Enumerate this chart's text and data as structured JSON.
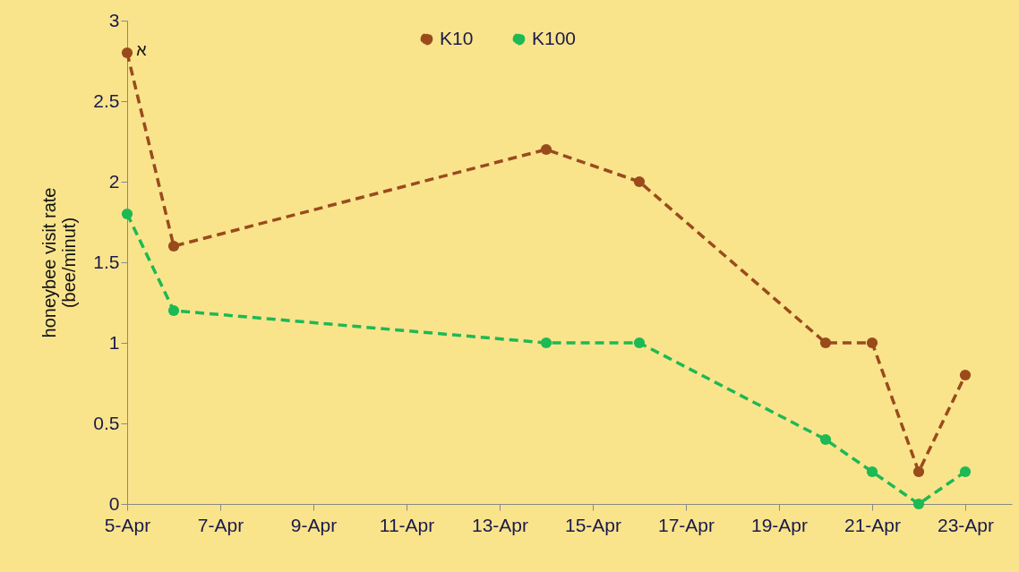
{
  "chart_data": {
    "type": "line",
    "ylabel": "honeybee visit rate\n(bee/minut)",
    "x": [
      "--04-05",
      "--04-06",
      "--04-14",
      "--04-16",
      "--04-20",
      "--04-21",
      "--04-22",
      "--04-23"
    ],
    "series": [
      {
        "name": "K10",
        "color": "#9a4b1c",
        "line_style": "dashed",
        "values": [
          2.8,
          1.6,
          2.2,
          2.0,
          1.0,
          1.0,
          0.2,
          0.8
        ]
      },
      {
        "name": "K100",
        "color": "#1db954",
        "line_style": "dashed",
        "values": [
          1.8,
          1.2,
          1.0,
          1.0,
          0.4,
          0.2,
          0.0,
          0.2
        ]
      }
    ],
    "xlim": [
      "--04-05",
      "--04-24"
    ],
    "xticks": [
      {
        "value": "--04-05",
        "label": "5-Apr"
      },
      {
        "value": "--04-07",
        "label": "7-Apr"
      },
      {
        "value": "--04-09",
        "label": "9-Apr"
      },
      {
        "value": "--04-11",
        "label": "11-Apr"
      },
      {
        "value": "--04-13",
        "label": "13-Apr"
      },
      {
        "value": "--04-15",
        "label": "15-Apr"
      },
      {
        "value": "--04-17",
        "label": "17-Apr"
      },
      {
        "value": "--04-19",
        "label": "19-Apr"
      },
      {
        "value": "--04-21",
        "label": "21-Apr"
      },
      {
        "value": "--04-23",
        "label": "23-Apr"
      }
    ],
    "ylim": [
      0,
      3
    ],
    "yticks": [
      0,
      0.5,
      1,
      1.5,
      2,
      2.5,
      3
    ],
    "annotations": [
      {
        "text": "א",
        "x": "--04-05",
        "y": 2.8
      }
    ],
    "marker": "circle",
    "legend": "top",
    "grid": false
  }
}
